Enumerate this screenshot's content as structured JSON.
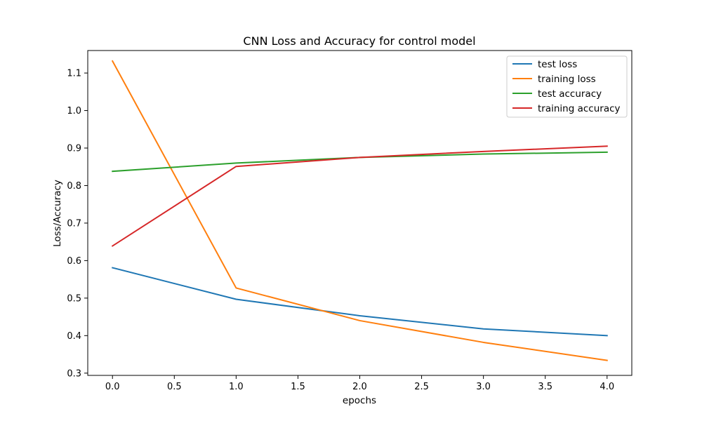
{
  "chart_data": {
    "type": "line",
    "title": "CNN Loss and Accuracy for control model",
    "xlabel": "epochs",
    "ylabel": "Loss/Accuracy",
    "x": [
      0,
      1,
      2,
      3,
      4
    ],
    "xlim": [
      -0.2,
      4.2
    ],
    "ylim": [
      0.294,
      1.16
    ],
    "xticks": [
      0.0,
      0.5,
      1.0,
      1.5,
      2.0,
      2.5,
      3.0,
      3.5,
      4.0
    ],
    "xtick_labels": [
      "0.0",
      "0.5",
      "1.0",
      "1.5",
      "2.0",
      "2.5",
      "3.0",
      "3.5",
      "4.0"
    ],
    "yticks": [
      0.3,
      0.4,
      0.5,
      0.6,
      0.7,
      0.8,
      0.9,
      1.0,
      1.1
    ],
    "ytick_labels": [
      "0.3",
      "0.4",
      "0.5",
      "0.6",
      "0.7",
      "0.8",
      "0.9",
      "1.0",
      "1.1"
    ],
    "grid": false,
    "legend_position": "top-right",
    "series": [
      {
        "name": "test loss",
        "color": "#1f77b4",
        "values": [
          0.581,
          0.497,
          0.453,
          0.418,
          0.4
        ]
      },
      {
        "name": "training loss",
        "color": "#ff7f0e",
        "values": [
          1.132,
          0.527,
          0.44,
          0.382,
          0.334
        ]
      },
      {
        "name": "test accuracy",
        "color": "#2ca02c",
        "values": [
          0.838,
          0.86,
          0.875,
          0.884,
          0.889
        ]
      },
      {
        "name": "training accuracy",
        "color": "#d62728",
        "values": [
          0.639,
          0.851,
          0.875,
          0.891,
          0.905
        ]
      }
    ]
  }
}
